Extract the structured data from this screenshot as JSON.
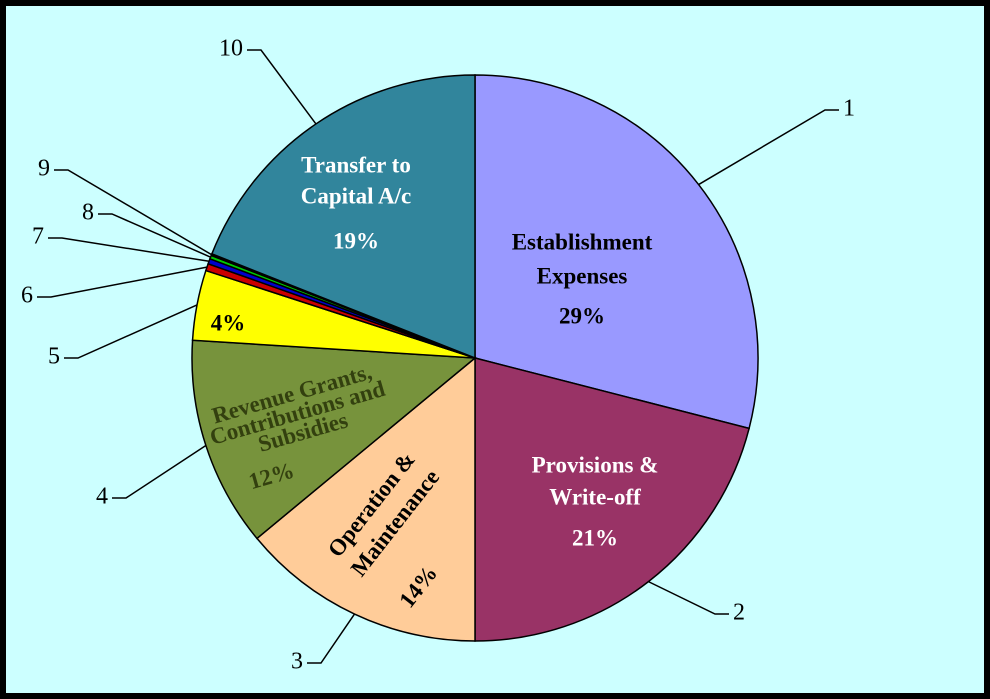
{
  "chart_data": {
    "type": "pie",
    "numbers": [
      "1",
      "2",
      "3",
      "4",
      "5",
      "6",
      "7",
      "8",
      "9",
      "10"
    ],
    "labels": [
      [
        "Establishment",
        "Expenses"
      ],
      [
        "Provisions &",
        "Write-off"
      ],
      [
        "Operation &",
        "Maintenance"
      ],
      [
        "Revenue Grants,",
        "Contributions and",
        "Subsidies"
      ],
      null,
      null,
      null,
      null,
      null,
      [
        "Transfer to",
        "Capital A/c"
      ]
    ],
    "values": [
      29,
      21,
      14,
      12,
      4,
      0.4,
      0.3,
      0.2,
      0.1,
      19
    ],
    "value_labels": [
      "29%",
      "21%",
      "14%",
      "12%",
      "4%",
      null,
      null,
      null,
      null,
      "19%"
    ],
    "colors": [
      "#9999ff",
      "#993366",
      "#ffcc99",
      "#77933c",
      "#ffff00",
      "#cc0000",
      "#0000cc",
      "#00cc00",
      "#000000",
      "#31859c"
    ]
  }
}
